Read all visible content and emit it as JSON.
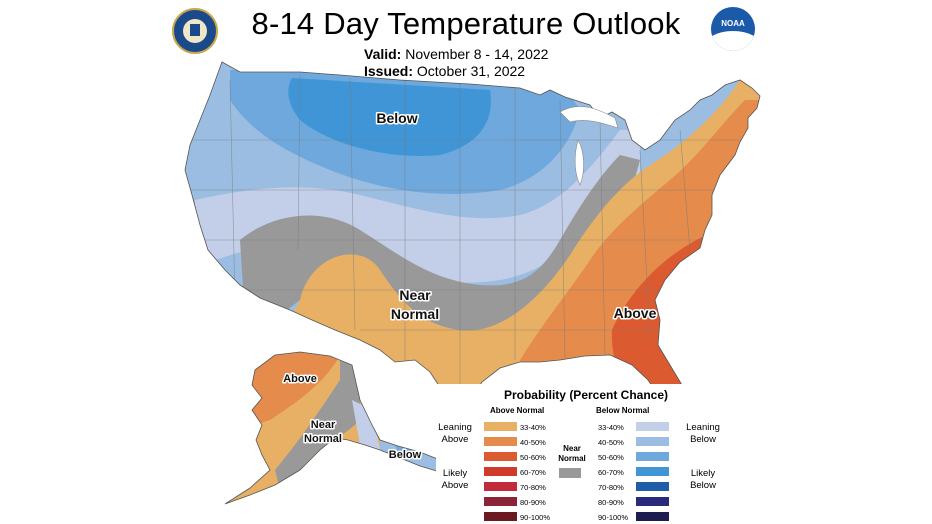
{
  "header": {
    "title": "8-14 Day Temperature Outlook",
    "valid_label": "Valid:",
    "valid_value": "November 8 - 14, 2022",
    "issued_label": "Issued:",
    "issued_value": "October 31, 2022"
  },
  "logos": {
    "left": "doc-seal",
    "right": "noaa-logo",
    "noaa_text": "NOAA"
  },
  "map": {
    "labels": {
      "conus_below": "Below",
      "conus_near": "Near",
      "conus_normal": "Normal",
      "conus_above": "Above",
      "ak_above": "Above",
      "ak_near": "Near",
      "ak_normal": "Normal",
      "ak_below": "Below"
    },
    "colors": {
      "above_33_40": "#e8b064",
      "above_40_50": "#e58b4c",
      "above_50_60": "#dc5a30",
      "near": "#999999",
      "below_33_40": "#c3cfe8",
      "below_40_50": "#9bbde2",
      "below_50_60": "#6ea8dd",
      "below_60_70": "#3f95d6"
    }
  },
  "legend": {
    "title": "Probability (Percent Chance)",
    "above_header": "Above Normal",
    "below_header": "Below Normal",
    "leaning_above": "Leaning\nAbove",
    "likely_above": "Likely\nAbove",
    "leaning_below": "Leaning\nBelow",
    "likely_below": "Likely\nBelow",
    "near_normal": "Near\nNormal",
    "above_items": [
      {
        "label": "33-40%",
        "color": "#e8b064"
      },
      {
        "label": "40-50%",
        "color": "#e58b4c"
      },
      {
        "label": "50-60%",
        "color": "#dc5a30"
      },
      {
        "label": "60-70%",
        "color": "#d03a2a"
      },
      {
        "label": "70-80%",
        "color": "#c02a3a"
      },
      {
        "label": "80-90%",
        "color": "#8c2438"
      },
      {
        "label": "90-100%",
        "color": "#6a1a20"
      }
    ],
    "below_items": [
      {
        "label": "33-40%",
        "color": "#c3cfe8"
      },
      {
        "label": "40-50%",
        "color": "#9bbde2"
      },
      {
        "label": "50-60%",
        "color": "#6ea8dd"
      },
      {
        "label": "60-70%",
        "color": "#3f95d6"
      },
      {
        "label": "70-80%",
        "color": "#1e5ea8"
      },
      {
        "label": "80-90%",
        "color": "#2a2a7a"
      },
      {
        "label": "90-100%",
        "color": "#1c1c4e"
      }
    ],
    "near_color": "#999999"
  }
}
